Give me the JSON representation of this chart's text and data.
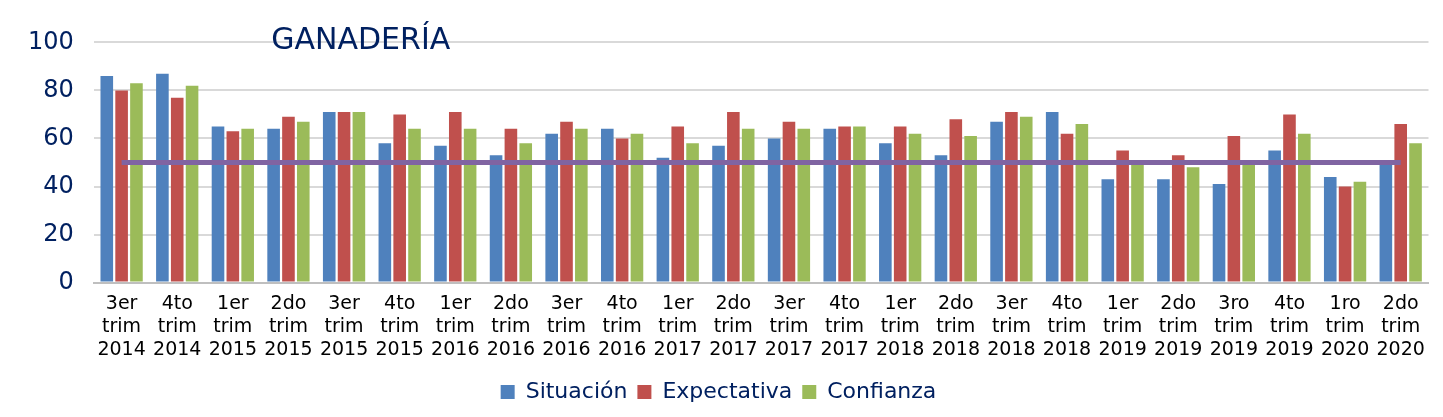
{
  "chart_data": {
    "type": "bar",
    "title": "GANADERÍA",
    "categories": [
      "3er trim 2014",
      "4to trim 2014",
      "1er trim 2015",
      "2do trim 2015",
      "3er trim 2015",
      "4to trim 2015",
      "1er trim 2016",
      "2do trim 2016",
      "3er trim 2016",
      "4to trim 2016",
      "1er trim 2017",
      "2do trim 2017",
      "3er trim 2017",
      "4to trim 2017",
      "1er trim 2018",
      "2do trim 2018",
      "3er trim 2018",
      "4to trim 2018",
      "1er trim 2019",
      "2do trim 2019",
      "3ro trim 2019",
      "4to trim 2019",
      "1ro trim 2020",
      "2do trim 2020"
    ],
    "series": [
      {
        "name": "Situación",
        "color": "#4f81bd",
        "values": [
          86,
          87,
          65,
          64,
          71,
          58,
          57,
          53,
          62,
          64,
          52,
          57,
          60,
          64,
          58,
          53,
          67,
          71,
          43,
          43,
          41,
          55,
          44,
          49
        ]
      },
      {
        "name": "Expectativa",
        "color": "#c0504d",
        "values": [
          80,
          77,
          63,
          69,
          71,
          70,
          71,
          64,
          67,
          60,
          65,
          71,
          67,
          65,
          65,
          68,
          71,
          62,
          55,
          53,
          61,
          70,
          40,
          66
        ]
      },
      {
        "name": "Confianza",
        "color": "#9bbb59",
        "values": [
          83,
          82,
          64,
          67,
          71,
          64,
          64,
          58,
          64,
          62,
          58,
          64,
          64,
          65,
          62,
          61,
          69,
          66,
          49,
          48,
          49,
          62,
          42,
          58
        ]
      }
    ],
    "ylim": [
      0,
      100
    ],
    "yticks": [
      0,
      20,
      40,
      60,
      80,
      100
    ],
    "grid": "y",
    "legend": "bottom",
    "ref_lines": [
      {
        "axis": "y",
        "value": 50,
        "color": "#8064a2"
      }
    ]
  }
}
